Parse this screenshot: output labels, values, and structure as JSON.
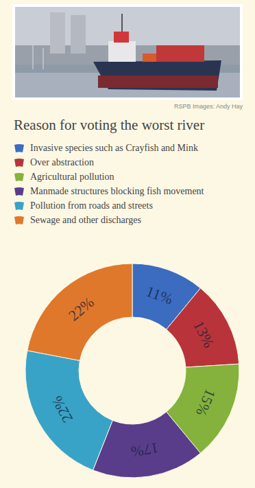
{
  "chart_data": {
    "type": "pie",
    "title": "Reason for voting the worst river",
    "image_credit": "RSPB Images: Andy Hay",
    "categories": [
      "Invasive species such as Crayfish and Mink",
      "Over abstraction",
      "Agricultural pollution",
      "Manmade structures blocking fish movement",
      "Pollution from roads and streets",
      "Sewage and other discharges"
    ],
    "values": [
      11,
      13,
      15,
      17,
      22,
      22
    ],
    "value_labels": [
      "11%",
      "13%",
      "15%",
      "17%",
      "22%",
      "22%"
    ],
    "colors": [
      "#3b6cc0",
      "#b8343a",
      "#84b23c",
      "#5a3d8a",
      "#38a3c6",
      "#e0782c"
    ],
    "legend": "top-left",
    "data_labels": true
  }
}
